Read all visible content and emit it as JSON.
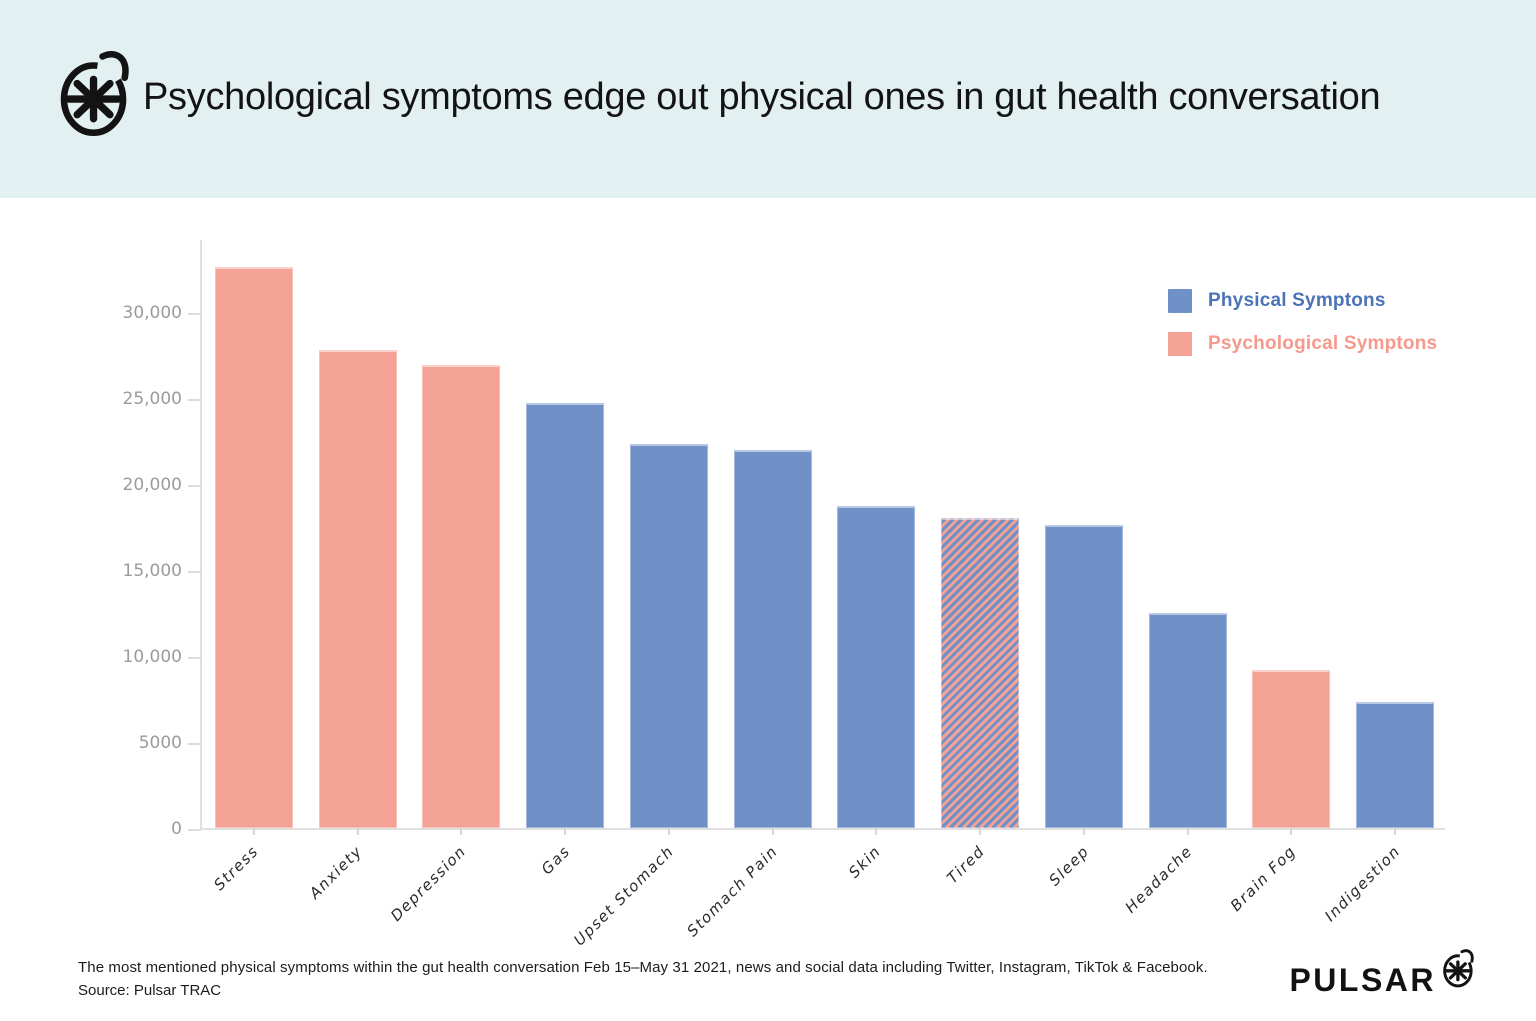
{
  "header": {
    "title": "Psychological symptoms edge out physical ones in gut health conversation",
    "logo_icon": "pulsar-asterisk-logo"
  },
  "colors": {
    "physical": "#7090C8",
    "psychological": "#F4A296",
    "physical_text": "#4C73B7",
    "psychological_text": "#F4998B",
    "header_bg": "#E3F0F2",
    "axis": "#E0E0E0",
    "tick_label": "#9B9B9B"
  },
  "legend": {
    "items": [
      {
        "key": "physical",
        "label": "Physical Symptons"
      },
      {
        "key": "psychological",
        "label": "Psychological Symptons"
      }
    ]
  },
  "chart_data": {
    "type": "bar",
    "title": "Psychological symptoms edge out physical ones in gut health conversation",
    "xlabel": "",
    "ylabel": "",
    "categories": [
      "Stress",
      "Anxiety",
      "Depression",
      "Gas",
      "Upset Stomach",
      "Stomach Pain",
      "Skin",
      "Tired",
      "Sleep",
      "Headache",
      "Brain Fog",
      "Indigestion"
    ],
    "values": [
      32600,
      27800,
      26900,
      24700,
      22300,
      22000,
      18700,
      18000,
      17600,
      12500,
      9200,
      7300
    ],
    "bar_categories": [
      "psychological",
      "psychological",
      "psychological",
      "physical",
      "physical",
      "physical",
      "physical",
      "both",
      "physical",
      "physical",
      "psychological",
      "physical"
    ],
    "ylim": [
      0,
      34300
    ],
    "ytick_values": [
      0,
      5000,
      10000,
      15000,
      20000,
      25000,
      30000
    ],
    "ytick_labels": [
      "0",
      "5000",
      "10,000",
      "15,000",
      "20,000",
      "25,000",
      "30,000"
    ],
    "grid": false,
    "legend_position": "top-right"
  },
  "footer": {
    "caption": "The most mentioned physical symptoms within the gut health conversation Feb 15–May 31 2021, news and social data including Twitter, Instagram, TikTok & Facebook.",
    "source": "Source: Pulsar TRAC",
    "brand": "PULSAR",
    "brand_icon": "pulsar-asterisk-logo"
  }
}
